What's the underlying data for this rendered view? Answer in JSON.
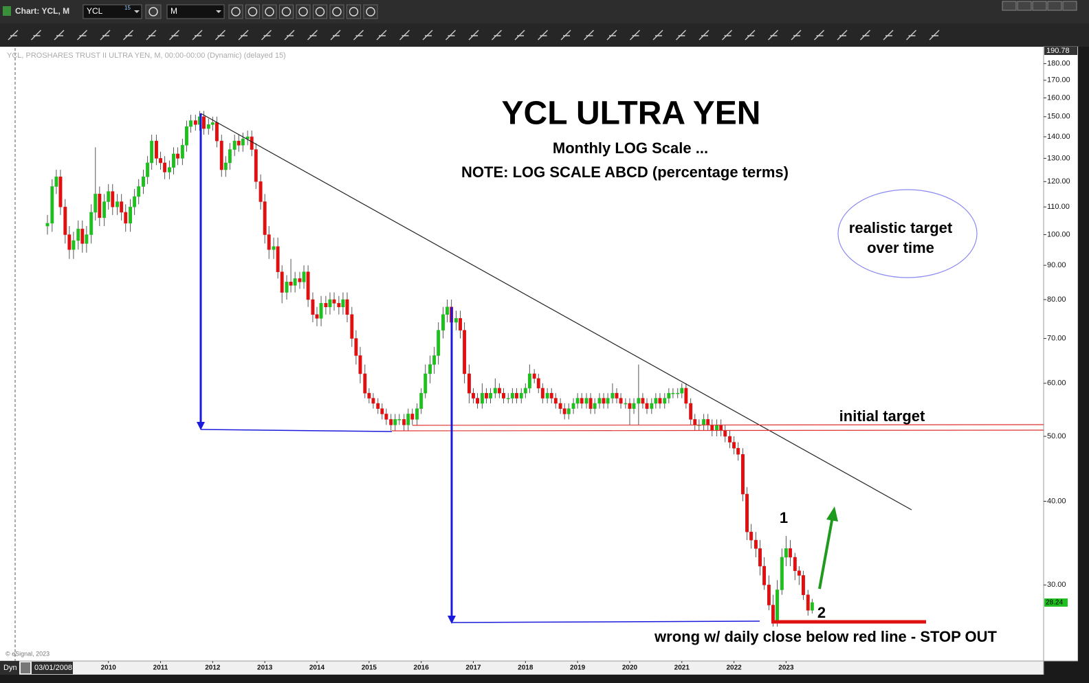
{
  "window": {
    "title": "Chart: YCL, M",
    "symbol": "YCL",
    "symbol_badge": "15",
    "interval": "M"
  },
  "chart_data": {
    "type": "candlestick",
    "header": "YCL, PROSHARES TRUST II ULTRA YEN, M, 00:00-00:00 (Dynamic) (delayed 15)",
    "title": "YCL ULTRA YEN",
    "subtitle": "Monthly LOG Scale ...",
    "note": "NOTE: LOG SCALE ABCD (percentage terms)",
    "annotations": [
      "realistic target",
      "over time",
      "initial target",
      "1",
      "2",
      "wrong w/ daily close below red line - STOP OUT"
    ],
    "copyright": "© eSignal, 2023",
    "mode": "Dyn",
    "start_date": "03/01/2008",
    "up_color": "#1fbf1f",
    "down_color": "#e01010",
    "log_scale": true,
    "grid": false,
    "xlim": [
      2007.92,
      2027.94
    ],
    "xticks": [
      2010,
      2011,
      2012,
      2013,
      2014,
      2015,
      2016,
      2017,
      2018,
      2019,
      2020,
      2021,
      2022,
      2023
    ],
    "ylim": [
      23.1,
      190.78
    ],
    "yticks": [
      {
        "value": 180,
        "label": "180.00"
      },
      {
        "value": 170,
        "label": "170.00"
      },
      {
        "value": 160,
        "label": "160.00"
      },
      {
        "value": 150,
        "label": "150.00"
      },
      {
        "value": 140,
        "label": "140.00"
      },
      {
        "value": 130,
        "label": "130.00"
      },
      {
        "value": 120,
        "label": "120.00"
      },
      {
        "value": 110,
        "label": "110.00"
      },
      {
        "value": 100,
        "label": "100.00"
      },
      {
        "value": 90,
        "label": "90.00"
      },
      {
        "value": 80,
        "label": "80.00"
      },
      {
        "value": 70,
        "label": "70.00"
      },
      {
        "value": 60,
        "label": "60.00"
      },
      {
        "value": 50,
        "label": "50.00"
      },
      {
        "value": 40,
        "label": "40.00"
      },
      {
        "value": 30,
        "label": "30.00"
      }
    ],
    "x": [
      2008.83,
      2008.92,
      2009,
      2009.08,
      2009.17,
      2009.25,
      2009.33,
      2009.42,
      2009.5,
      2009.58,
      2009.67,
      2009.75,
      2009.83,
      2009.92,
      2010,
      2010.08,
      2010.17,
      2010.25,
      2010.33,
      2010.42,
      2010.5,
      2010.58,
      2010.67,
      2010.75,
      2010.83,
      2010.92,
      2011,
      2011.08,
      2011.17,
      2011.25,
      2011.33,
      2011.42,
      2011.5,
      2011.58,
      2011.67,
      2011.75,
      2011.83,
      2011.92,
      2012,
      2012.08,
      2012.17,
      2012.25,
      2012.33,
      2012.42,
      2012.5,
      2012.58,
      2012.67,
      2012.75,
      2012.83,
      2012.92,
      2013,
      2013.08,
      2013.17,
      2013.25,
      2013.33,
      2013.42,
      2013.5,
      2013.58,
      2013.67,
      2013.75,
      2013.83,
      2013.92,
      2014,
      2014.08,
      2014.17,
      2014.25,
      2014.33,
      2014.42,
      2014.5,
      2014.58,
      2014.67,
      2014.75,
      2014.83,
      2014.92,
      2015,
      2015.08,
      2015.17,
      2015.25,
      2015.33,
      2015.42,
      2015.5,
      2015.58,
      2015.67,
      2015.75,
      2015.83,
      2015.92,
      2016,
      2016.08,
      2016.17,
      2016.25,
      2016.33,
      2016.42,
      2016.5,
      2016.58,
      2016.67,
      2016.75,
      2016.83,
      2016.92,
      2017,
      2017.08,
      2017.17,
      2017.25,
      2017.33,
      2017.42,
      2017.5,
      2017.58,
      2017.67,
      2017.75,
      2017.83,
      2017.92,
      2018,
      2018.08,
      2018.17,
      2018.25,
      2018.33,
      2018.42,
      2018.5,
      2018.58,
      2018.67,
      2018.75,
      2018.83,
      2018.92,
      2019,
      2019.08,
      2019.17,
      2019.25,
      2019.33,
      2019.42,
      2019.5,
      2019.58,
      2019.67,
      2019.75,
      2019.83,
      2019.92,
      2020,
      2020.08,
      2020.17,
      2020.25,
      2020.33,
      2020.42,
      2020.5,
      2020.58,
      2020.67,
      2020.75,
      2020.83,
      2020.92,
      2021,
      2021.08,
      2021.17,
      2021.25,
      2021.33,
      2021.42,
      2021.5,
      2021.58,
      2021.67,
      2021.75,
      2021.83,
      2021.92,
      2022,
      2022.08,
      2022.17,
      2022.25,
      2022.33,
      2022.42,
      2022.5,
      2022.58,
      2022.67,
      2022.75,
      2022.83,
      2022.92,
      2023,
      2023.08,
      2023.17,
      2023.25,
      2023.33,
      2023.42,
      2023.5
    ],
    "open": [
      103,
      104,
      118,
      122,
      110,
      100,
      95,
      98,
      102,
      97,
      100,
      108,
      115,
      106,
      112,
      116,
      110,
      112,
      108,
      104,
      110,
      114,
      118,
      122,
      128,
      138,
      130,
      128,
      124,
      126,
      132,
      130,
      136,
      145,
      148,
      146,
      150,
      144,
      146,
      147,
      138,
      125,
      128,
      134,
      138,
      136,
      139,
      140,
      134,
      120,
      112,
      100,
      95,
      96,
      88,
      82,
      85,
      84,
      86,
      85,
      88,
      80,
      76,
      75,
      79,
      78,
      80,
      79,
      78,
      80,
      76,
      70,
      66,
      62,
      58,
      57,
      56,
      55,
      54,
      53,
      52,
      53,
      53,
      52,
      54,
      53,
      55,
      58,
      62,
      64,
      66,
      72,
      76,
      78,
      74,
      75,
      72,
      62,
      58,
      57,
      56,
      58,
      57,
      58,
      59,
      58,
      57,
      57,
      58,
      57,
      58,
      59,
      62,
      61,
      59,
      57,
      58,
      57,
      56,
      55,
      54,
      55,
      56,
      57,
      56,
      57,
      55,
      56,
      57,
      56,
      57,
      58,
      57,
      56,
      56,
      55,
      56,
      57,
      56,
      55,
      56,
      57,
      56,
      57,
      58,
      58,
      58,
      59,
      56,
      53,
      52,
      52,
      53,
      52,
      51,
      52,
      51,
      50,
      49,
      48,
      47,
      41,
      36,
      35,
      34,
      32,
      30,
      28,
      26.5,
      29.5,
      33,
      34,
      33,
      31.5,
      31,
      29,
      27.5
    ],
    "high": [
      107,
      121,
      125,
      125,
      113,
      103,
      101,
      105,
      105,
      103,
      111,
      135,
      118,
      115,
      119,
      119,
      115,
      115,
      111,
      113,
      117,
      121,
      125,
      131,
      141,
      141,
      133,
      131,
      129,
      135,
      135,
      139,
      148,
      151,
      151,
      153,
      153,
      149,
      150,
      150,
      141,
      131,
      137,
      141,
      141,
      142,
      143,
      143,
      137,
      123,
      115,
      103,
      99,
      99,
      90,
      87,
      92,
      88,
      88,
      90,
      90,
      82,
      78,
      81,
      81,
      82,
      82,
      81,
      82,
      82,
      78,
      72,
      68,
      64,
      59,
      58,
      57,
      56,
      55,
      54,
      54,
      54,
      54,
      55,
      55,
      56,
      59,
      64,
      66,
      68,
      74,
      78,
      80,
      80,
      77,
      77,
      74,
      64,
      59,
      58,
      60,
      59,
      59,
      61,
      60,
      59,
      58,
      59,
      59,
      59,
      60,
      64,
      63,
      62,
      60,
      59,
      59,
      58,
      57,
      56,
      56,
      57,
      58,
      58,
      58,
      58,
      57,
      58,
      58,
      58,
      60,
      59,
      58,
      57,
      57,
      57,
      64,
      58,
      57,
      57,
      58,
      58,
      58,
      59,
      59,
      59,
      60,
      60,
      57,
      54,
      53,
      54,
      54,
      53,
      53,
      53,
      52,
      51,
      50,
      49,
      48,
      42,
      37,
      36,
      35,
      33,
      31,
      29,
      30.5,
      34,
      35.5,
      35,
      33.5,
      32,
      31.5,
      29.5,
      28.6
    ],
    "low": [
      100,
      101,
      115,
      107,
      97,
      92,
      92,
      95,
      94,
      94,
      97,
      105,
      103,
      103,
      109,
      107,
      107,
      105,
      101,
      101,
      107,
      111,
      115,
      119,
      125,
      127,
      125,
      121,
      121,
      123,
      127,
      127,
      133,
      142,
      143,
      143,
      141,
      141,
      143,
      135,
      122,
      122,
      125,
      131,
      133,
      133,
      136,
      131,
      117,
      109,
      97,
      92,
      92,
      86,
      79,
      80,
      82,
      82,
      83,
      83,
      78,
      74,
      73,
      73,
      76,
      76,
      77,
      76,
      76,
      74,
      68,
      64,
      60,
      57,
      56,
      55,
      54,
      53,
      52,
      51,
      51,
      52,
      51,
      51,
      52,
      52,
      54,
      57,
      60,
      62,
      64,
      70,
      74,
      72,
      72,
      70,
      60,
      56,
      56,
      55,
      55,
      56,
      56,
      57,
      57,
      56,
      56,
      56,
      56,
      56,
      57,
      58,
      60,
      58,
      56,
      56,
      56,
      55,
      54,
      53,
      53,
      54,
      55,
      55,
      55,
      54,
      54,
      55,
      55,
      55,
      56,
      56,
      55,
      55,
      52,
      54,
      52,
      55,
      54,
      54,
      55,
      55,
      55,
      56,
      57,
      57,
      57,
      55,
      52,
      51,
      51,
      51,
      51,
      50,
      50,
      50,
      49,
      48,
      47,
      46,
      40,
      35,
      34,
      33,
      31,
      29.5,
      27.5,
      26,
      26,
      29,
      32,
      32,
      30.5,
      30,
      28.5,
      27,
      27.2
    ],
    "close": [
      104,
      118,
      122,
      110,
      100,
      95,
      98,
      102,
      97,
      100,
      108,
      115,
      106,
      112,
      116,
      110,
      112,
      108,
      104,
      110,
      114,
      118,
      122,
      128,
      138,
      130,
      128,
      124,
      126,
      132,
      130,
      136,
      145,
      148,
      146,
      150,
      144,
      146,
      147,
      138,
      125,
      128,
      134,
      138,
      136,
      139,
      140,
      134,
      120,
      112,
      100,
      95,
      96,
      88,
      82,
      85,
      84,
      86,
      85,
      88,
      80,
      76,
      75,
      79,
      78,
      80,
      79,
      78,
      80,
      76,
      70,
      66,
      62,
      58,
      57,
      56,
      55,
      54,
      53,
      52,
      53,
      53,
      52,
      54,
      53,
      55,
      58,
      62,
      64,
      66,
      72,
      76,
      78,
      74,
      75,
      72,
      62,
      58,
      57,
      56,
      58,
      57,
      58,
      59,
      58,
      57,
      57,
      58,
      57,
      58,
      59,
      62,
      61,
      59,
      57,
      58,
      57,
      56,
      55,
      54,
      55,
      56,
      57,
      56,
      57,
      55,
      56,
      57,
      56,
      57,
      58,
      57,
      56,
      56,
      55,
      56,
      57,
      56,
      55,
      56,
      57,
      56,
      57,
      58,
      58,
      58,
      59,
      56,
      53,
      52,
      52,
      53,
      52,
      51,
      52,
      51,
      50,
      49,
      48,
      47,
      41,
      36,
      35,
      34,
      32,
      30,
      28,
      26.5,
      29.5,
      33,
      34,
      33,
      31.5,
      31,
      29,
      27.5,
      28.24
    ]
  }
}
